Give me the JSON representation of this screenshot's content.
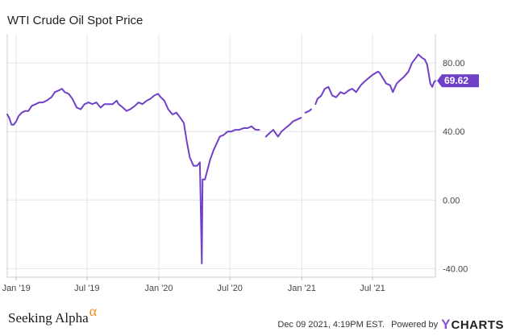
{
  "title": "WTI Crude Oil Spot Price",
  "footer": {
    "brand": "Seeking Alpha",
    "brand_mark": "α",
    "timestamp": "Dec 09 2021, 4:19PM EST.",
    "powered_by": "Powered by",
    "ycharts_y": "Y",
    "ycharts_rest": "CHARTS"
  },
  "colors": {
    "line": "#7040c8",
    "grid": "#e5e5e5",
    "badge": "#7040c8"
  },
  "chart_data": {
    "type": "line",
    "title": "WTI Crude Oil Spot Price",
    "xlabel": "",
    "ylabel": "",
    "ylim": [
      -45,
      97
    ],
    "y_ticks": [
      80,
      40,
      0,
      -40
    ],
    "y_tick_labels": [
      "80.00",
      "40.00",
      "0.00",
      "-40.00"
    ],
    "x_ticks": [
      "2019-01-01",
      "2019-07-01",
      "2020-01-01",
      "2020-07-01",
      "2021-01-01",
      "2021-07-01"
    ],
    "x_tick_labels": [
      "Jan '19",
      "Jul '19",
      "Jan '20",
      "Jul '20",
      "Jan '21",
      "Jul '21"
    ],
    "xlim": [
      "2018-12-09",
      "2021-12-09"
    ],
    "last_value": 69.62,
    "last_value_label": "69.62",
    "grid": true,
    "series": [
      {
        "x": [
          "2018-12-09",
          "2018-12-14",
          "2018-12-20",
          "2018-12-26",
          "2019-01-01",
          "2019-01-07",
          "2019-01-15",
          "2019-01-24",
          "2019-02-01",
          "2019-02-10",
          "2019-02-20",
          "2019-03-01",
          "2019-03-10",
          "2019-03-20",
          "2019-04-01",
          "2019-04-10",
          "2019-04-20",
          "2019-04-28",
          "2019-05-05",
          "2019-05-15",
          "2019-05-25",
          "2019-06-05",
          "2019-06-15",
          "2019-06-25",
          "2019-07-05",
          "2019-07-15",
          "2019-07-25",
          "2019-08-05",
          "2019-08-15",
          "2019-08-25",
          "2019-09-05",
          "2019-09-15",
          "2019-09-20",
          "2019-10-01",
          "2019-10-10",
          "2019-10-20",
          "2019-11-01",
          "2019-11-10",
          "2019-11-20",
          "2019-12-01",
          "2019-12-10",
          "2019-12-20",
          "2019-12-30",
          "2020-01-06",
          "2020-01-15",
          "2020-01-25",
          "2020-02-05",
          "2020-02-15",
          "2020-02-25",
          "2020-03-05",
          "2020-03-12",
          "2020-03-20",
          "2020-03-30",
          "2020-04-08",
          "2020-04-15",
          "2020-04-20",
          "2020-04-22",
          "2020-04-28",
          "2020-05-05",
          "2020-05-12",
          "2020-05-20",
          "2020-05-28",
          "2020-06-05",
          "2020-06-15",
          "2020-06-25",
          "2020-07-05",
          "2020-07-15",
          "2020-07-25",
          "2020-08-05",
          "2020-08-15",
          "2020-08-25",
          "2020-09-05",
          "2020-09-14"
        ],
        "y": [
          50,
          48,
          44,
          44,
          46,
          49,
          51,
          52,
          52,
          55,
          56,
          57,
          57,
          58,
          60,
          63,
          64,
          65,
          63,
          62,
          59,
          54,
          53,
          56,
          57,
          56,
          57,
          54,
          56,
          56,
          56,
          58,
          56,
          54,
          52,
          53,
          55,
          57,
          56,
          58,
          59,
          61,
          62,
          60,
          58,
          53,
          50,
          51,
          48,
          45,
          35,
          25,
          20,
          20,
          22,
          -37,
          12,
          12,
          18,
          24,
          29,
          33,
          37,
          38,
          40,
          40,
          41,
          41,
          42,
          42,
          43,
          41,
          41
        ]
      },
      {
        "x": [
          "2020-10-01",
          "2020-10-10",
          "2020-10-20",
          "2020-11-01",
          "2020-11-10",
          "2020-11-20",
          "2020-12-01",
          "2020-12-10",
          "2020-12-20",
          "2020-12-30"
        ],
        "y": [
          37,
          39,
          41,
          37,
          40,
          42,
          44,
          46,
          47,
          48
        ]
      },
      {
        "x": [
          "2021-01-10",
          "2021-01-20",
          "2021-01-25"
        ],
        "y": [
          51,
          52,
          53
        ]
      },
      {
        "x": [
          "2021-02-05",
          "2021-02-10",
          "2021-02-20",
          "2021-03-01",
          "2021-03-10",
          "2021-03-20",
          "2021-03-30",
          "2021-04-10",
          "2021-04-20",
          "2021-05-01",
          "2021-05-10",
          "2021-05-20",
          "2021-06-01",
          "2021-06-10",
          "2021-06-20",
          "2021-07-01",
          "2021-07-08",
          "2021-07-15",
          "2021-07-20",
          "2021-07-28",
          "2021-08-05",
          "2021-08-15",
          "2021-08-22",
          "2021-09-01",
          "2021-09-10",
          "2021-09-20",
          "2021-10-01",
          "2021-10-10",
          "2021-10-20",
          "2021-10-26",
          "2021-11-05",
          "2021-11-12",
          "2021-11-18",
          "2021-11-26",
          "2021-12-01",
          "2021-12-06",
          "2021-12-09"
        ],
        "y": [
          56,
          59,
          61,
          65,
          66,
          61,
          60,
          63,
          62,
          64,
          65,
          63,
          67,
          69,
          71,
          73,
          74,
          75,
          74,
          71,
          68,
          67,
          63,
          68,
          70,
          72,
          75,
          80,
          83,
          85,
          83,
          82,
          79,
          68,
          66,
          69,
          69.6
        ]
      }
    ]
  }
}
